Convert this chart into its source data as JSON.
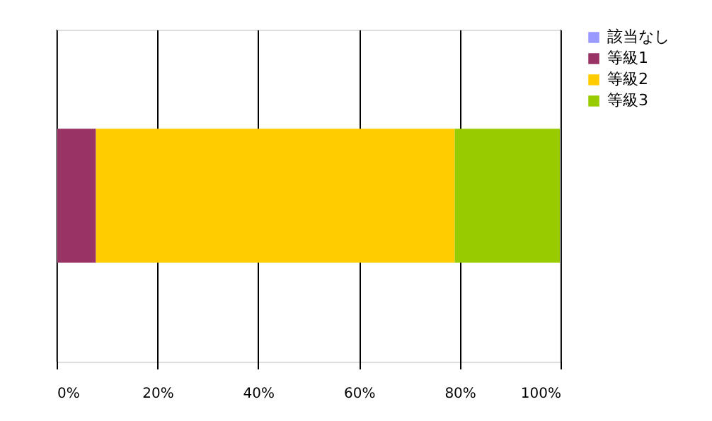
{
  "chart_data": {
    "type": "bar",
    "orientation": "horizontal",
    "stacked": true,
    "categories": [
      null
    ],
    "series": [
      {
        "name": "該当なし",
        "color": "#9999ff",
        "values": [
          0
        ]
      },
      {
        "name": "等級1",
        "color": "#993366",
        "values": [
          7.8
        ]
      },
      {
        "name": "等級2",
        "color": "#ffcc00",
        "values": [
          71.2
        ]
      },
      {
        "name": "等級3",
        "color": "#99cc00",
        "values": [
          21.0
        ]
      }
    ],
    "xlim": [
      0,
      100
    ],
    "xticks": [
      {
        "value": 0,
        "label": "0%"
      },
      {
        "value": 20,
        "label": "20%"
      },
      {
        "value": 40,
        "label": "40%"
      },
      {
        "value": 60,
        "label": "60%"
      },
      {
        "value": 80,
        "label": "80%"
      },
      {
        "value": 100,
        "label": "100%"
      }
    ],
    "grid": "x",
    "legend": "right"
  }
}
